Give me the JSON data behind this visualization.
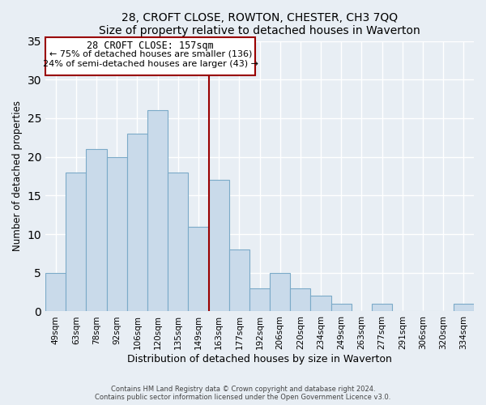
{
  "title": "28, CROFT CLOSE, ROWTON, CHESTER, CH3 7QQ",
  "subtitle": "Size of property relative to detached houses in Waverton",
  "xlabel": "Distribution of detached houses by size in Waverton",
  "ylabel": "Number of detached properties",
  "bar_labels": [
    "49sqm",
    "63sqm",
    "78sqm",
    "92sqm",
    "106sqm",
    "120sqm",
    "135sqm",
    "149sqm",
    "163sqm",
    "177sqm",
    "192sqm",
    "206sqm",
    "220sqm",
    "234sqm",
    "249sqm",
    "263sqm",
    "277sqm",
    "291sqm",
    "306sqm",
    "320sqm",
    "334sqm"
  ],
  "bar_values": [
    5,
    18,
    21,
    20,
    23,
    26,
    18,
    11,
    17,
    8,
    3,
    5,
    3,
    2,
    1,
    0,
    1,
    0,
    0,
    0,
    1
  ],
  "bar_color": "#c9daea",
  "bar_edgecolor": "#7baac8",
  "vline_color": "#990000",
  "annotation_title": "28 CROFT CLOSE: 157sqm",
  "annotation_line1": "← 75% of detached houses are smaller (136)",
  "annotation_line2": "24% of semi-detached houses are larger (43) →",
  "annotation_box_edgecolor": "#990000",
  "ylim": [
    0,
    35
  ],
  "yticks": [
    0,
    5,
    10,
    15,
    20,
    25,
    30,
    35
  ],
  "footer1": "Contains HM Land Registry data © Crown copyright and database right 2024.",
  "footer2": "Contains public sector information licensed under the Open Government Licence v3.0.",
  "bg_color": "#e8eef4",
  "plot_bg_color": "#e8eef4"
}
